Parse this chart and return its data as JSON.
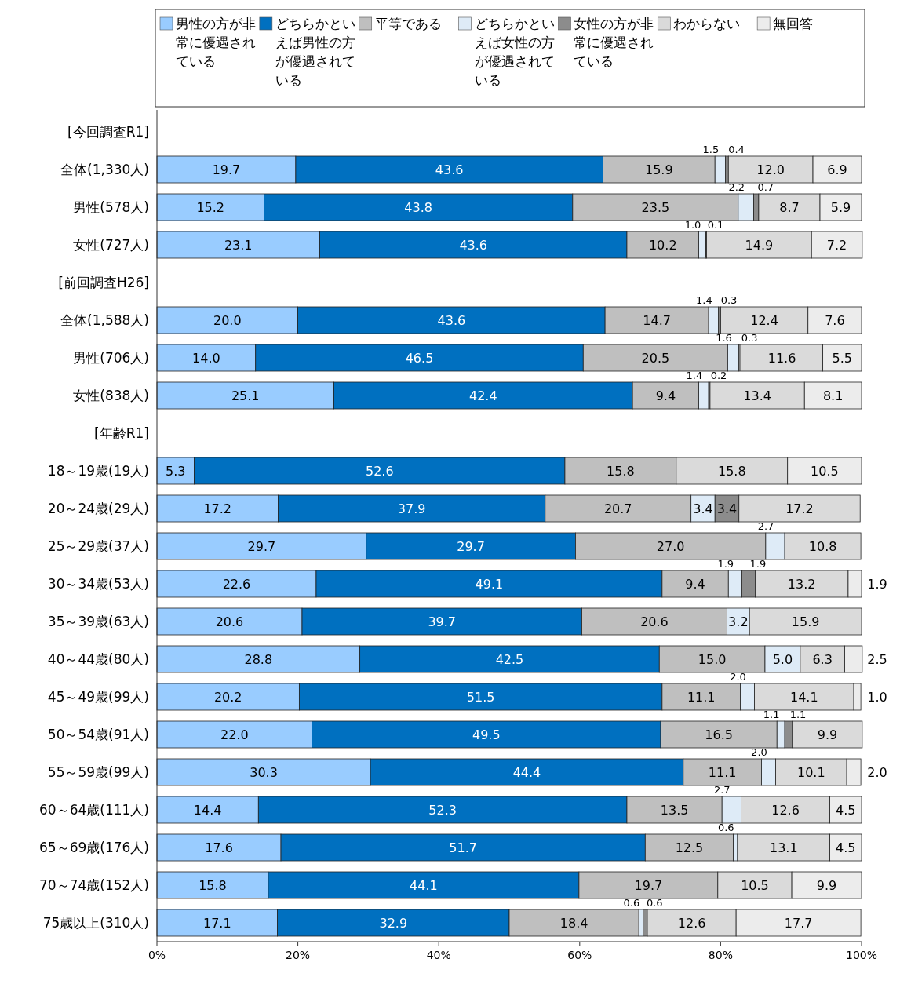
{
  "chart_data": {
    "type": "bar",
    "orientation": "horizontal",
    "stacked": true,
    "data_labels": true,
    "legend": "top",
    "grid": false,
    "categories": [
      "[今回調査R1]",
      "全体(1,330人)",
      "男性(578人)",
      "女性(727人)",
      "[前回調査H26]",
      "全体(1,588人)",
      "男性(706人)",
      "女性(838人)",
      "[年齢R1]",
      "18～19歳(19人)",
      "20～24歳(29人)",
      "25～29歳(37人)",
      "30～34歳(53人)",
      "35～39歳(63人)",
      "40～44歳(80人)",
      "45～49歳(99人)",
      "50～54歳(91人)",
      "55～59歳(99人)",
      "60～64歳(111人)",
      "65～69歳(176人)",
      "70～74歳(152人)",
      "75歳以上(310人)"
    ],
    "xlim": [
      0,
      100
    ],
    "xticks": [
      {
        "value": 0,
        "label": "0%"
      },
      {
        "value": 20,
        "label": "20%"
      },
      {
        "value": 40,
        "label": "40%"
      },
      {
        "value": 60,
        "label": "60%"
      },
      {
        "value": 80,
        "label": "80%"
      },
      {
        "value": 100,
        "label": "100%"
      }
    ],
    "series": [
      {
        "name": "男性の方が非常に優遇されている",
        "color": "#99ccff",
        "values": [
          null,
          19.7,
          15.2,
          23.1,
          null,
          20.0,
          14.0,
          25.1,
          null,
          5.3,
          17.2,
          29.7,
          22.6,
          20.6,
          28.8,
          20.2,
          22.0,
          30.3,
          14.4,
          17.6,
          15.8,
          17.1
        ],
        "value_labels": [
          null,
          "19.7",
          "15.2",
          "23.1",
          null,
          "20.0",
          "14.0",
          "25.1",
          null,
          "5.3",
          "17.2",
          "29.7",
          "22.6",
          "20.6",
          "28.8",
          "20.2",
          "22.0",
          "30.3",
          "14.4",
          "17.6",
          "15.8",
          "17.1"
        ]
      },
      {
        "name": "どちらかといえば男性の方が優遇されている",
        "color": "#0070c0",
        "values": [
          null,
          43.6,
          43.8,
          43.6,
          null,
          43.6,
          46.5,
          42.4,
          null,
          52.6,
          37.9,
          29.7,
          49.1,
          39.7,
          42.5,
          51.5,
          49.5,
          44.4,
          52.3,
          51.7,
          44.1,
          32.9
        ],
        "value_labels": [
          null,
          "43.6",
          "43.8",
          "43.6",
          null,
          "43.6",
          "46.5",
          "42.4",
          null,
          "52.6",
          "37.9",
          "29.7",
          "49.1",
          "39.7",
          "42.5",
          "51.5",
          "49.5",
          "44.4",
          "52.3",
          "51.7",
          "44.1",
          "32.9"
        ]
      },
      {
        "name": "平等である",
        "color": "#bfbfbf",
        "values": [
          null,
          15.9,
          23.5,
          10.2,
          null,
          14.7,
          20.5,
          9.4,
          null,
          15.8,
          20.7,
          27.0,
          9.4,
          20.6,
          15.0,
          11.1,
          16.5,
          11.1,
          13.5,
          12.5,
          19.7,
          18.4
        ],
        "value_labels": [
          null,
          "15.9",
          "23.5",
          "10.2",
          null,
          "14.7",
          "20.5",
          "9.4",
          null,
          "15.8",
          "20.7",
          "27.0",
          "9.4",
          "20.6",
          "15.0",
          "11.1",
          "16.5",
          "11.1",
          "13.5",
          "12.5",
          "19.7",
          "18.4"
        ]
      },
      {
        "name": "どちらかといえば女性の方が優遇されている",
        "color": "#deebf7",
        "values": [
          null,
          1.5,
          2.2,
          1.0,
          null,
          1.4,
          1.6,
          1.4,
          null,
          null,
          3.4,
          2.7,
          1.9,
          3.2,
          5.0,
          2.0,
          1.1,
          2.0,
          2.7,
          0.6,
          null,
          0.6
        ],
        "value_labels": [
          null,
          "1.5",
          "2.2",
          "1.0",
          null,
          "1.4",
          "1.6",
          "1.4",
          null,
          null,
          "3.4",
          "2.7",
          "1.9",
          "3.2",
          "5.0",
          "2.0",
          "1.1",
          "2.0",
          "2.7",
          "0.6",
          null,
          "0.6"
        ]
      },
      {
        "name": "女性の方が非常に優遇されている",
        "color": "#8c8c8c",
        "values": [
          null,
          0.4,
          0.7,
          0.1,
          null,
          0.3,
          0.3,
          0.2,
          null,
          null,
          3.4,
          null,
          1.9,
          null,
          null,
          null,
          1.1,
          null,
          null,
          null,
          null,
          0.6
        ],
        "value_labels": [
          null,
          "0.4",
          "0.7",
          "0.1",
          null,
          "0.3",
          "0.3",
          "0.2",
          null,
          null,
          "3.4",
          null,
          "1.9",
          null,
          null,
          null,
          "1.1",
          null,
          null,
          null,
          null,
          "0.6"
        ]
      },
      {
        "name": "わからない",
        "color": "#dadada",
        "values": [
          null,
          12.0,
          8.7,
          14.9,
          null,
          12.4,
          11.6,
          13.4,
          null,
          15.8,
          17.2,
          10.8,
          13.2,
          15.9,
          6.3,
          14.1,
          9.9,
          10.1,
          12.6,
          13.1,
          10.5,
          12.6
        ],
        "value_labels": [
          null,
          "12.0",
          "8.7",
          "14.9",
          null,
          "12.4",
          "11.6",
          "13.4",
          null,
          "15.8",
          "17.2",
          "10.8",
          "13.2",
          "15.9",
          "6.3",
          "14.1",
          "9.9",
          "10.1",
          "12.6",
          "13.1",
          "10.5",
          "12.6"
        ]
      },
      {
        "name": "無回答",
        "color": "#ececec",
        "values": [
          null,
          6.9,
          5.9,
          7.2,
          null,
          7.6,
          5.5,
          8.1,
          null,
          10.5,
          null,
          null,
          1.9,
          null,
          2.5,
          1.0,
          null,
          2.0,
          4.5,
          4.5,
          9.9,
          17.7
        ],
        "value_labels": [
          null,
          "6.9",
          "5.9",
          "7.2",
          null,
          "7.6",
          "5.5",
          "8.1",
          null,
          "10.5",
          null,
          null,
          "1.9",
          null,
          "2.5",
          "1.0",
          null,
          "2.0",
          "4.5",
          "4.5",
          "9.9",
          "17.7"
        ]
      }
    ]
  }
}
